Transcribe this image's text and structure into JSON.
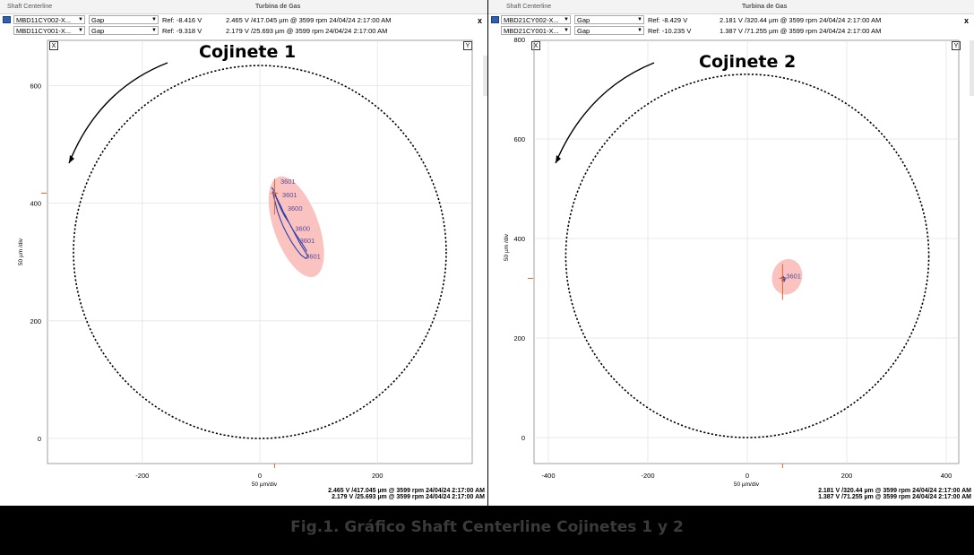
{
  "panels": [
    {
      "app": "Shaft Centerline",
      "machine": "Turbina de Gas",
      "rows": [
        {
          "point": "MBD11CY002-X...",
          "mode": "Gap",
          "ref": "Ref:  -8.416  V",
          "value": "2.465 V /417.045 µm @ 3599 rpm 24/04/24 2:17:00 AM"
        },
        {
          "point": "MBD11CY001-X...",
          "mode": "Gap",
          "ref": "Ref:  -9.318  V",
          "value": "2.179 V /25.693 µm @ 3599 rpm 24/04/24 2:17:00 AM"
        }
      ],
      "close": "x",
      "x_box": "X",
      "y_box": "Y",
      "label": "Cojinete 1",
      "xaxis_label": "50 µm/div",
      "yaxis_label": "50 µm /div",
      "footer": [
        "2.465 V /417.045 µm @ 3599 rpm 24/04/24 2:17:00 AM",
        "2.179 V /25.693 µm @ 3599 rpm 24/04/24 2:17:00 AM"
      ]
    },
    {
      "app": "Shaft Centerline",
      "machine": "Turbina de Gas",
      "rows": [
        {
          "point": "MBD21CY002-X...",
          "mode": "Gap",
          "ref": "Ref:  -8.429  V",
          "value": "2.181 V /320.44 µm @ 3599 rpm 24/04/24 2:17:00 AM"
        },
        {
          "point": "MBD21CY001-X...",
          "mode": "Gap",
          "ref": "Ref:  -10.235  V",
          "value": "1.387 V /71.255 µm @ 3599 rpm 24/04/24 2:17:00 AM"
        }
      ],
      "close": "x",
      "x_box": "X",
      "y_box": "Y",
      "label": "Cojinete 2",
      "xaxis_label": "50 µm/div",
      "yaxis_label": "50 µm /div",
      "footer": [
        "2.181 V /320.44 µm @ 3599 rpm 24/04/24 2:17:00 AM",
        "1.387 V /71.255 µm @ 3599 rpm 24/04/24 2:17:00 AM"
      ]
    }
  ],
  "chart_data": [
    {
      "type": "scatter",
      "title": "Cojinete 1",
      "xlabel": "50 µm/div",
      "ylabel": "50 µm /div",
      "xlim": [
        -360,
        360
      ],
      "ylim": [
        -40,
        680
      ],
      "x_ticks": [
        "-200",
        "0",
        "200"
      ],
      "y_ticks": [
        "0",
        "200",
        "400",
        "600"
      ],
      "x_tick_values": [
        -200,
        0,
        200
      ],
      "y_tick_values": [
        0,
        200,
        400,
        600
      ],
      "clearance_circle": {
        "cx": 0,
        "cy": 317,
        "r": 317
      },
      "ellipse": {
        "cx": 62,
        "cy": 360,
        "rx": 38,
        "ry": 90,
        "rotate_deg": -20
      },
      "marker": {
        "x": 25,
        "y": 417
      },
      "speed_labels": [
        {
          "x": 35,
          "y": 433,
          "text": "3601"
        },
        {
          "x": 38,
          "y": 410,
          "text": "3601"
        },
        {
          "x": 47,
          "y": 387,
          "text": "3600"
        },
        {
          "x": 60,
          "y": 353,
          "text": "3600"
        },
        {
          "x": 68,
          "y": 332,
          "text": "3601"
        },
        {
          "x": 78,
          "y": 306,
          "text": "3601"
        }
      ],
      "orbit": [
        [
          20,
          427
        ],
        [
          25,
          420
        ],
        [
          28,
          410
        ],
        [
          32,
          402
        ],
        [
          36,
          394
        ],
        [
          40,
          385
        ],
        [
          44,
          378
        ],
        [
          48,
          370
        ],
        [
          52,
          362
        ],
        [
          56,
          355
        ],
        [
          60,
          347
        ],
        [
          64,
          340
        ],
        [
          68,
          332
        ],
        [
          73,
          324
        ],
        [
          78,
          316
        ],
        [
          82,
          310
        ],
        [
          78,
          306
        ],
        [
          70,
          312
        ],
        [
          62,
          322
        ],
        [
          54,
          334
        ],
        [
          46,
          348
        ],
        [
          40,
          360
        ],
        [
          35,
          372
        ],
        [
          30,
          386
        ],
        [
          27,
          398
        ],
        [
          24,
          410
        ],
        [
          22,
          420
        ],
        [
          26,
          414
        ],
        [
          30,
          404
        ],
        [
          36,
          390
        ],
        [
          42,
          378
        ],
        [
          50,
          366
        ],
        [
          58,
          352
        ],
        [
          66,
          340
        ],
        [
          74,
          328
        ],
        [
          80,
          318
        ]
      ],
      "label": "Cojinete 1"
    },
    {
      "type": "scatter",
      "title": "Cojinete 2",
      "xlabel": "50 µm/div",
      "ylabel": "50 µm /div",
      "xlim": [
        -435,
        435
      ],
      "ylim": [
        -60,
        810
      ],
      "x_ticks": [
        "-400",
        "-200",
        "0",
        "200",
        "400"
      ],
      "y_ticks": [
        "0",
        "200",
        "400",
        "600",
        "800"
      ],
      "x_tick_values": [
        -400,
        -200,
        0,
        200,
        400
      ],
      "y_tick_values": [
        0,
        200,
        400,
        600,
        800
      ],
      "clearance_circle": {
        "cx": 0,
        "cy": 365,
        "r": 365
      },
      "ellipse": {
        "cx": 80,
        "cy": 323,
        "rx": 30,
        "ry": 36,
        "rotate_deg": 15
      },
      "marker": {
        "x": 71,
        "y": 320
      },
      "speed_labels": [
        {
          "x": 78,
          "y": 320,
          "text": "3601"
        }
      ],
      "orbit": [
        [
          68,
          320
        ],
        [
          72,
          324
        ],
        [
          76,
          318
        ],
        [
          74,
          314
        ],
        [
          70,
          316
        ],
        [
          73,
          322
        ],
        [
          77,
          320
        ],
        [
          71,
          317
        ]
      ],
      "label": "Cojinete 2"
    }
  ],
  "caption": "Fig.1. Gráfico Shaft Centerline Cojinetes 1 y 2"
}
